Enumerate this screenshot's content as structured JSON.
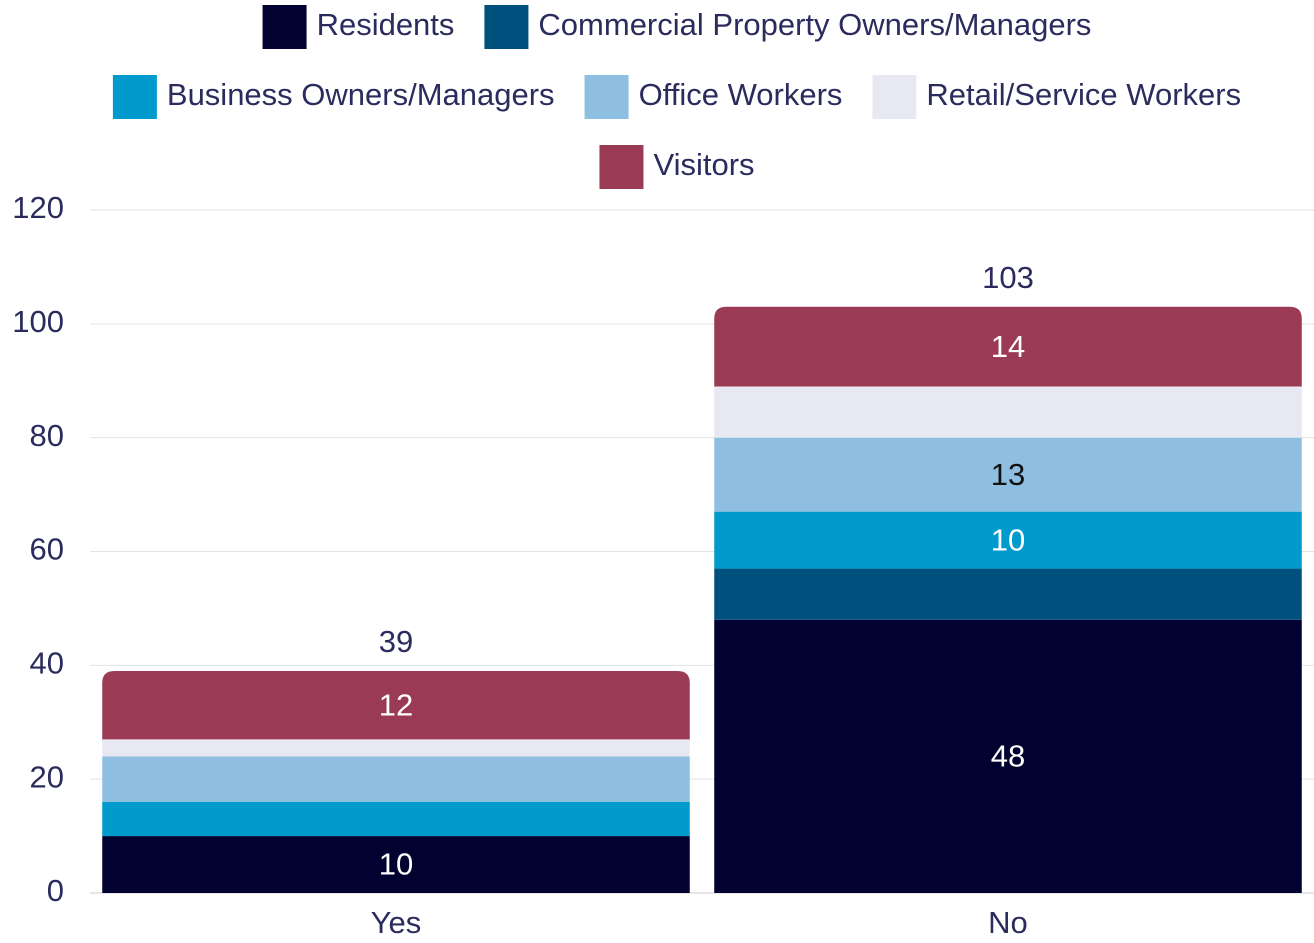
{
  "chart_data": {
    "type": "stacked_bar",
    "categories": [
      "Yes",
      "No"
    ],
    "series": [
      {
        "name": "Residents",
        "color": "#020230",
        "values": [
          10,
          48
        ]
      },
      {
        "name": "Commercial Property Owners/Managers",
        "color": "#00507e",
        "values": [
          0,
          9
        ]
      },
      {
        "name": "Business Owners/Managers",
        "color": "#009bcc",
        "values": [
          6,
          10
        ]
      },
      {
        "name": "Office Workers",
        "color": "#8fbfe0",
        "values": [
          8,
          13
        ]
      },
      {
        "name": "Retail/Service Workers",
        "color": "#e8e8f2",
        "values": [
          3,
          9
        ]
      },
      {
        "name": "Visitors",
        "color": "#9b3a55",
        "values": [
          12,
          14
        ]
      }
    ],
    "totals": [
      39,
      103
    ],
    "ylim": [
      0,
      120
    ],
    "yticks": [
      0,
      20,
      40,
      60,
      80,
      100,
      120
    ],
    "grid": true,
    "legend": "top"
  }
}
